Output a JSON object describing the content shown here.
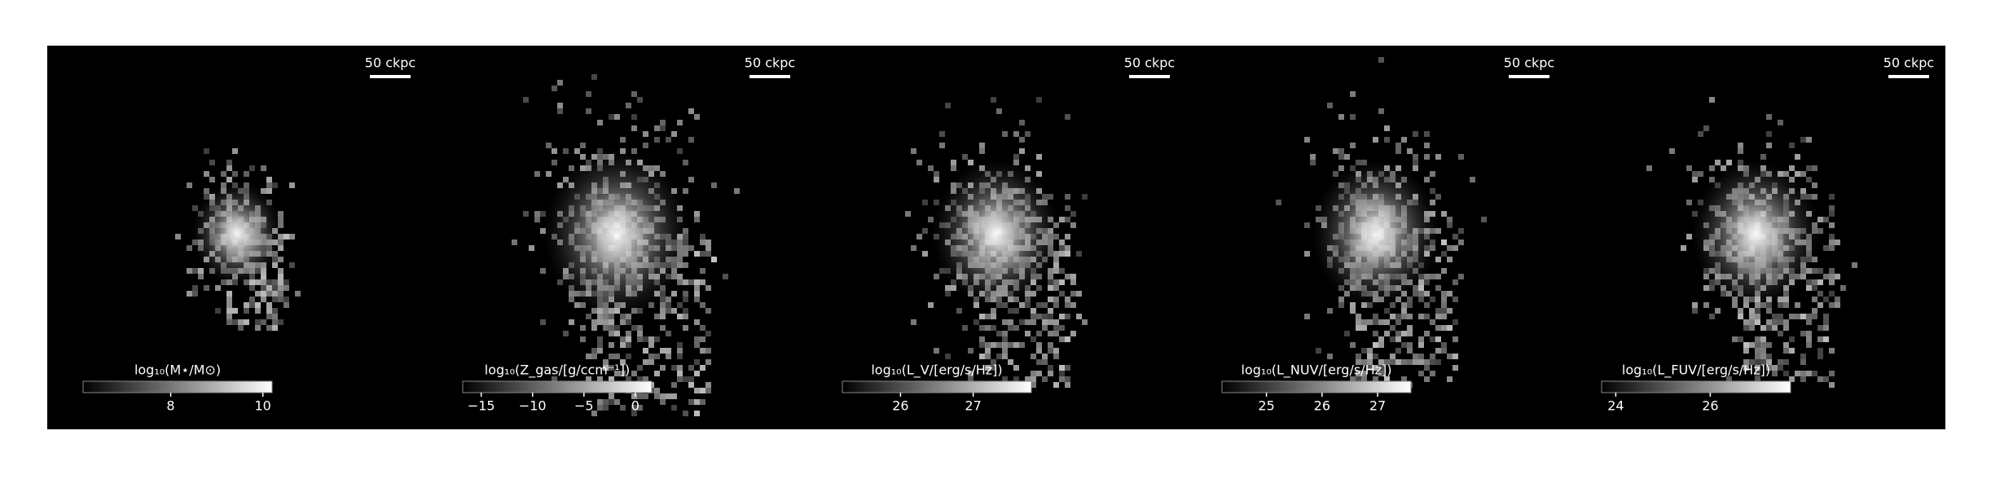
{
  "chart_data": [
    {
      "type": "image",
      "scale_bar": "50 ckpc",
      "colorbar": {
        "label": "log₁₀(M⋆/M⊙)",
        "lim": [
          6.1,
          10.2
        ],
        "ticks": [
          8,
          10
        ]
      }
    },
    {
      "type": "image",
      "scale_bar": "50 ckpc",
      "colorbar": {
        "label": "log₁₀(Z_gas/[g/ccm⁻¹])",
        "lim": [
          -16.8,
          1.6
        ],
        "ticks": [
          {
            "value": -15,
            "label": "−15"
          },
          {
            "value": -10,
            "label": "−10"
          },
          {
            "value": -5,
            "label": "−5"
          },
          0
        ]
      }
    },
    {
      "type": "image",
      "scale_bar": "50 ckpc",
      "colorbar": {
        "label": "log₁₀(L_V/[erg/s/Hz])",
        "lim": [
          25.2,
          27.8
        ],
        "ticks": [
          26,
          27
        ]
      }
    },
    {
      "type": "image",
      "scale_bar": "50 ckpc",
      "colorbar": {
        "label": "log₁₀(L_NUV/[erg/s/Hz])",
        "lim": [
          24.2,
          27.6
        ],
        "ticks": [
          25,
          26,
          27
        ]
      }
    },
    {
      "type": "image",
      "scale_bar": "50 ckpc",
      "colorbar": {
        "label": "log₁₀(L_FUV/[erg/s/Hz])",
        "lim": [
          23.7,
          27.7
        ],
        "ticks": [
          24,
          26
        ]
      }
    }
  ]
}
